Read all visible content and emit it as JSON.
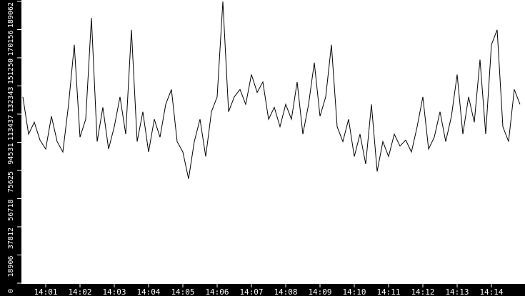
{
  "chart_data": {
    "type": "line",
    "title": "",
    "xlabel": "",
    "ylabel": "",
    "ylim": [
      0,
      189062
    ],
    "yticks": [
      "0",
      "18906",
      "37812",
      "56718",
      "75625",
      "94531",
      "113437",
      "132343",
      "151250",
      "170156",
      "189062"
    ],
    "xticks": [
      "14:01",
      "14:02",
      "14:03",
      "14:04",
      "14:05",
      "14:06",
      "14:07",
      "14:08",
      "14:09",
      "14:10",
      "14:11",
      "14:12",
      "14:13",
      "14:14"
    ],
    "grid": false,
    "colors": {
      "background": "#000000",
      "plot": "#ffffff",
      "line": "#000000",
      "text": "#ffffff"
    },
    "series": [
      {
        "x": [
          "14:00:20",
          "14:00:30",
          "14:00:40",
          "14:00:50",
          "14:01:00",
          "14:01:10",
          "14:01:20",
          "14:01:30",
          "14:01:40",
          "14:01:50",
          "14:02:00",
          "14:02:10",
          "14:02:20",
          "14:02:30",
          "14:02:40",
          "14:02:50",
          "14:03:00",
          "14:03:10",
          "14:03:20",
          "14:03:30",
          "14:03:40",
          "14:03:50",
          "14:04:00",
          "14:04:10",
          "14:04:20",
          "14:04:30",
          "14:04:40",
          "14:04:50",
          "14:05:00",
          "14:05:10",
          "14:05:20",
          "14:05:30",
          "14:05:40",
          "14:05:50",
          "14:06:00",
          "14:06:10",
          "14:06:20",
          "14:06:30",
          "14:06:40",
          "14:06:50",
          "14:07:00",
          "14:07:10",
          "14:07:20",
          "14:07:30",
          "14:07:40",
          "14:07:50",
          "14:08:00",
          "14:08:10",
          "14:08:20",
          "14:08:30",
          "14:08:40",
          "14:08:50",
          "14:09:00",
          "14:09:10",
          "14:09:20",
          "14:09:30",
          "14:09:40",
          "14:09:50",
          "14:10:00",
          "14:10:10",
          "14:10:20",
          "14:10:30",
          "14:10:40",
          "14:10:50",
          "14:11:00",
          "14:11:10",
          "14:11:20",
          "14:11:30",
          "14:11:40",
          "14:11:50",
          "14:12:00",
          "14:12:10",
          "14:12:20",
          "14:12:30",
          "14:12:40",
          "14:12:50",
          "14:13:00",
          "14:13:10",
          "14:13:20",
          "14:13:30",
          "14:13:40",
          "14:13:50",
          "14:14:00",
          "14:14:10",
          "14:14:20",
          "14:14:30",
          "14:14:40",
          "14:14:50"
        ],
        "y": [
          125000,
          100000,
          108000,
          96000,
          90000,
          112000,
          95000,
          88000,
          120000,
          160000,
          98000,
          110000,
          178000,
          95000,
          118000,
          90000,
          105000,
          125000,
          100000,
          170000,
          95000,
          115000,
          88000,
          110000,
          98000,
          120000,
          130000,
          95000,
          88000,
          70000,
          95000,
          110000,
          85000,
          115000,
          125000,
          189000,
          115000,
          125000,
          130000,
          120000,
          140000,
          128000,
          135000,
          110000,
          118000,
          105000,
          120000,
          110000,
          135000,
          100000,
          120000,
          148000,
          112000,
          125000,
          160000,
          105000,
          95000,
          110000,
          85000,
          100000,
          80000,
          120000,
          75000,
          95000,
          85000,
          100000,
          92000,
          96000,
          88000,
          105000,
          125000,
          90000,
          98000,
          115000,
          95000,
          112000,
          140000,
          100000,
          125000,
          108000,
          150000,
          100000,
          160000,
          170000,
          105000,
          95000,
          130000,
          120000
        ]
      }
    ]
  }
}
